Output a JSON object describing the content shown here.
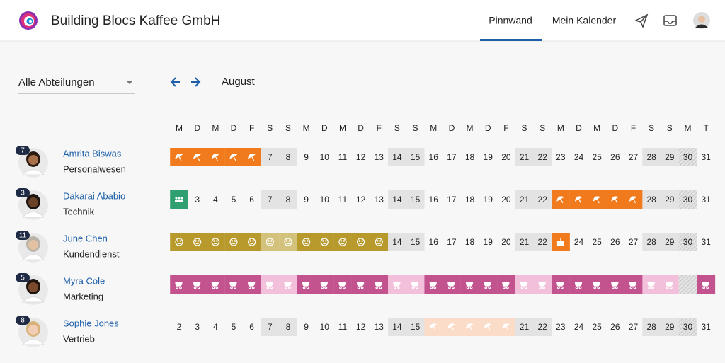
{
  "header": {
    "company": "Building Blocs Kaffee GmbH",
    "nav": [
      {
        "label": "Pinnwand",
        "active": true
      },
      {
        "label": "Mein Kalender",
        "active": false
      }
    ]
  },
  "filter": {
    "label": "Alle Abteilungen"
  },
  "calendar": {
    "month": "August",
    "weekdays": [
      "M",
      "D",
      "M",
      "D",
      "F",
      "S",
      "S",
      "M",
      "D",
      "M",
      "D",
      "F",
      "S",
      "S",
      "M",
      "D",
      "M",
      "D",
      "F",
      "S",
      "S",
      "M",
      "D",
      "M",
      "D",
      "F",
      "S",
      "S",
      "M",
      "T"
    ],
    "days": [
      2,
      3,
      4,
      5,
      6,
      7,
      8,
      9,
      10,
      11,
      12,
      13,
      14,
      15,
      16,
      17,
      18,
      19,
      20,
      21,
      22,
      23,
      24,
      25,
      26,
      27,
      28,
      29,
      30,
      31
    ],
    "weekends": [
      7,
      8,
      14,
      15,
      21,
      22,
      28,
      29
    ],
    "holidays": [
      30
    ],
    "absence_types": {
      "vacation": {
        "color": "#f07a1c",
        "light": "#f6b07a"
      },
      "vacation_pending": {
        "color": "#fbdcc8",
        "light": "#fbdcc8"
      },
      "training": {
        "color": "#b79a2b",
        "light": "#d3c27c"
      },
      "team": {
        "color": "#2f9e70",
        "light": "#8fd0b4"
      },
      "birthday": {
        "color": "#f07a1c",
        "light": "#f6b07a"
      },
      "parental": {
        "color": "#c2538f",
        "light": "#f2c0da"
      }
    },
    "employees": [
      {
        "name": "Amrita Biswas",
        "department": "Personalwesen",
        "count": 7,
        "skin": "#a8704a",
        "hair": "#2a1a12",
        "absences": [
          {
            "type": "vacation",
            "from": 2,
            "to": 6
          }
        ]
      },
      {
        "name": "Dakarai Ababio",
        "department": "Technik",
        "count": 3,
        "skin": "#6b4128",
        "hair": "#1c1410",
        "absences": [
          {
            "type": "team",
            "from": 2,
            "to": 2
          },
          {
            "type": "vacation",
            "from": 23,
            "to": 27
          }
        ]
      },
      {
        "name": "June Chen",
        "department": "Kundendienst",
        "count": 11,
        "skin": "#e3c2a4",
        "hair": "#b9b3aa",
        "absences": [
          {
            "type": "training",
            "from": 2,
            "to": 13
          },
          {
            "type": "birthday",
            "from": 23,
            "to": 23
          }
        ]
      },
      {
        "name": "Myra Cole",
        "department": "Marketing",
        "count": 5,
        "skin": "#7a4a2e",
        "hair": "#1e130d",
        "absences": [
          {
            "type": "parental",
            "from": 2,
            "to": 31
          }
        ]
      },
      {
        "name": "Sophie Jones",
        "department": "Vertrieb",
        "count": 8,
        "skin": "#f0cdb4",
        "hair": "#d9b27a",
        "absences": [
          {
            "type": "vacation_pending",
            "from": 16,
            "to": 20
          }
        ]
      }
    ]
  }
}
